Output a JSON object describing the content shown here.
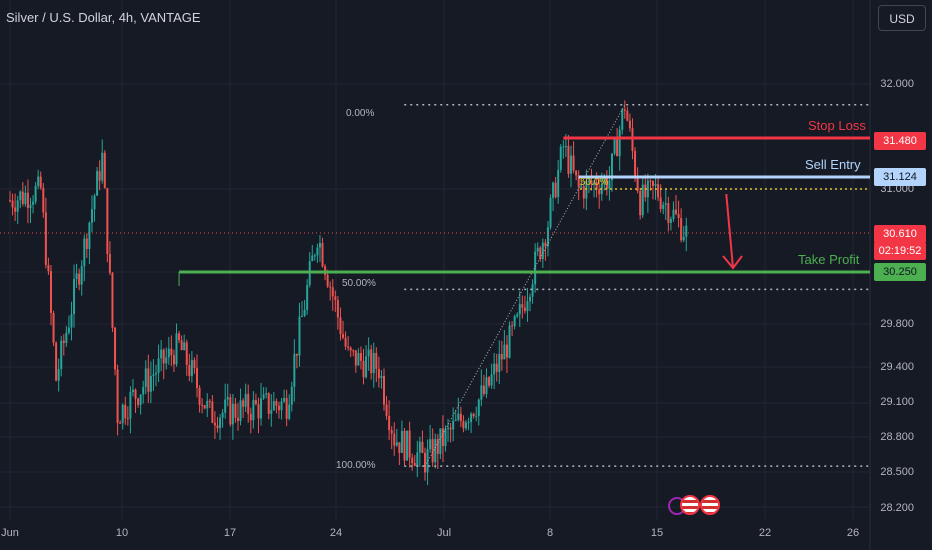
{
  "title": "Silver / U.S. Dollar, 4h, VANTAGE",
  "currency_button": "USD",
  "colors": {
    "background": "#161a25",
    "up_candle": "#26a69a",
    "down_candle": "#ef5350",
    "stop_loss": "#f23645",
    "sell_entry": "#b3d4fc",
    "take_profit": "#4caf50",
    "arrow": "#f23645",
    "fib": "#b2b5be"
  },
  "levels": {
    "stop_loss": {
      "label": "Stop Loss",
      "price": "31.480"
    },
    "sell_entry": {
      "label": "Sell Entry",
      "price": "31.124"
    },
    "take_profit": {
      "label": "Take Profit",
      "price": "30.250"
    },
    "current": {
      "price": "30.610",
      "countdown": "02:19:52"
    }
  },
  "fib_labels": {
    "f0": "0.00%",
    "f50_right": "50.00%",
    "f50_mid": "50.0%",
    "f100": "100.00%"
  },
  "chart_data": {
    "type": "candlestick",
    "title": "Silver / U.S. Dollar, 4h, VANTAGE",
    "y_ticks": [
      "32.000",
      "31.000",
      "30.250",
      "29.800",
      "29.400",
      "29.100",
      "28.800",
      "28.500",
      "28.200"
    ],
    "x_ticks": [
      "Jun",
      "10",
      "17",
      "24",
      "Jul",
      "8",
      "15",
      "22",
      "26"
    ],
    "fibonacci": {
      "0%": 31.8,
      "50%": 30.1,
      "100%": 28.55
    },
    "annotations": [
      "Stop Loss",
      "Sell Entry",
      "Take Profit"
    ],
    "key_path": [
      {
        "x": "Jun 1",
        "close": 30.9
      },
      {
        "x": "Jun 3",
        "close": 31.0
      },
      {
        "x": "Jun 4",
        "close": 29.3
      },
      {
        "x": "Jun 6",
        "close": 30.6
      },
      {
        "x": "Jun 7",
        "close": 31.3
      },
      {
        "x": "Jun 8",
        "close": 29.0
      },
      {
        "x": "Jun 12",
        "close": 29.6
      },
      {
        "x": "Jun 14",
        "close": 29.0
      },
      {
        "x": "Jun 19",
        "close": 29.1
      },
      {
        "x": "Jun 21",
        "close": 30.6
      },
      {
        "x": "Jun 23",
        "close": 29.5
      },
      {
        "x": "Jun 25",
        "close": 29.4
      },
      {
        "x": "Jun 26",
        "close": 28.8
      },
      {
        "x": "Jun 28",
        "close": 28.6
      },
      {
        "x": "Jul 2",
        "close": 29.2
      },
      {
        "x": "Jul 4",
        "close": 29.8
      },
      {
        "x": "Jul 6",
        "close": 30.7
      },
      {
        "x": "Jul 7",
        "close": 31.4
      },
      {
        "x": "Jul 8",
        "close": 31.0
      },
      {
        "x": "Jul 10",
        "close": 31.1
      },
      {
        "x": "Jul 11",
        "close": 31.8
      },
      {
        "x": "Jul 12",
        "close": 30.9
      },
      {
        "x": "Jul 13",
        "close": 31.0
      },
      {
        "x": "Jul 15",
        "close": 30.61
      }
    ],
    "last_price": 30.61,
    "grid": true
  }
}
